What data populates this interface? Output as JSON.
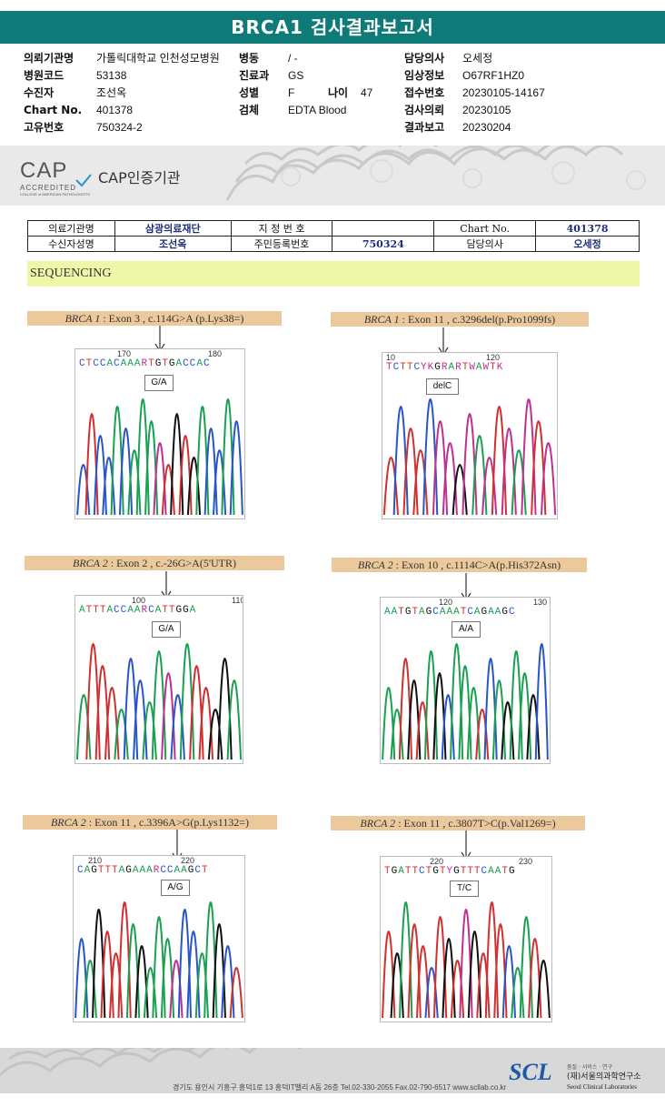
{
  "title": "BRCA1 검사결과보고서",
  "patient_info": {
    "col1": [
      {
        "label": "의뢰기관명",
        "value": "가톨릭대학교 인천성모병원"
      },
      {
        "label": "병원코드",
        "value": "53138"
      },
      {
        "label": "수진자",
        "value": "조선옥"
      },
      {
        "label": "Chart No.",
        "value": "401378"
      },
      {
        "label": "고유번호",
        "value": "750324-2"
      }
    ],
    "col2": [
      {
        "label": "병동",
        "value": "/ -"
      },
      {
        "label": "진료과",
        "value": "GS"
      },
      {
        "label": "성별",
        "value": "F"
      },
      {
        "label": "검체",
        "value": "EDTA Blood"
      }
    ],
    "age_label": "나이",
    "age_value": "47",
    "col3": [
      {
        "label": "담당의사",
        "value": "오세정"
      },
      {
        "label": "임상정보",
        "value": "O67RF1HZ0"
      },
      {
        "label": "접수번호",
        "value": "20230105-14167"
      },
      {
        "label": "검사의뢰",
        "value": "20230105"
      },
      {
        "label": "결과보고",
        "value": "20230204"
      }
    ]
  },
  "cap": {
    "logo_big": "CAP",
    "logo_small": "ACCREDITED",
    "logo_tiny": "COLLEGE of AMERICAN PATHOLOGISTS",
    "label": "CAP인증기관"
  },
  "ref_table": {
    "r1": [
      "의료기관명",
      "삼광의료재단",
      "지 정 번 호",
      "",
      "Chart No.",
      "401378"
    ],
    "r2": [
      "수신자성명",
      "조선옥",
      "주민등록번호",
      "750324",
      "담당의사",
      "오세정"
    ]
  },
  "section_title": "SEQUENCING",
  "panels": [
    {
      "gene": "BRCA 1",
      "label": " : Exon 3 , c.114G>A (p.Lys38=)",
      "seq": "CTCCACAAARTGTGACCAC",
      "pos1": "170",
      "pos2": "180",
      "call": "G/A"
    },
    {
      "gene": "BRCA 1",
      "label": " : Exon 11 , c.3296del(p.Pro1099fs)",
      "seq": "TCTTCYKGRARTWAWTK",
      "pos1": "10",
      "pos2": "120",
      "call": "delC"
    },
    {
      "gene": "BRCA 2",
      "label": " : Exon 2 , c.-26G>A(5'UTR)",
      "seq": "ATTTACCAARCATTGGA",
      "pos1": "100",
      "pos2": "110",
      "call": "G/A"
    },
    {
      "gene": "BRCA 2",
      "label": " : Exon 10 , c.1114C>A(p.His372Asn)",
      "seq": "AATGTAGCAAATCAGAAGC",
      "pos1": "120",
      "pos2": "130",
      "call": "A/A"
    },
    {
      "gene": "BRCA 2",
      "label": " : Exon 11 , c.3396A>G(p.Lys1132=)",
      "seq": "CAGTTTAGAAARCCAAGCT",
      "pos1": "210",
      "pos2": "220",
      "call": "A/G"
    },
    {
      "gene": "BRCA 2",
      "label": " : Exon 11 , c.3807T>C(p.Val1269=)",
      "seq": "TGATTCTGTYGTTTCAATG",
      "pos1": "220",
      "pos2": "230",
      "call": "T/C"
    }
  ],
  "footer": {
    "address": "경기도 용인시 기흥구 흥덕1로 13 흥덕IT밸리 A동 26층  Tel.02-330-2055  Fax.02-790-6517  www.scllab.co.kr",
    "logo": "SCL",
    "tagline": "품질 · 서비스 · 연구",
    "org_ko": "(재)서울의과학연구소",
    "org_en": "Seoul Clinical Laboratories"
  },
  "colors": {
    "teal": "#0e7b78",
    "A": "#1aa050",
    "C": "#2a55c8",
    "G": "#111111",
    "T": "#d03030",
    "other": "#c03090"
  }
}
